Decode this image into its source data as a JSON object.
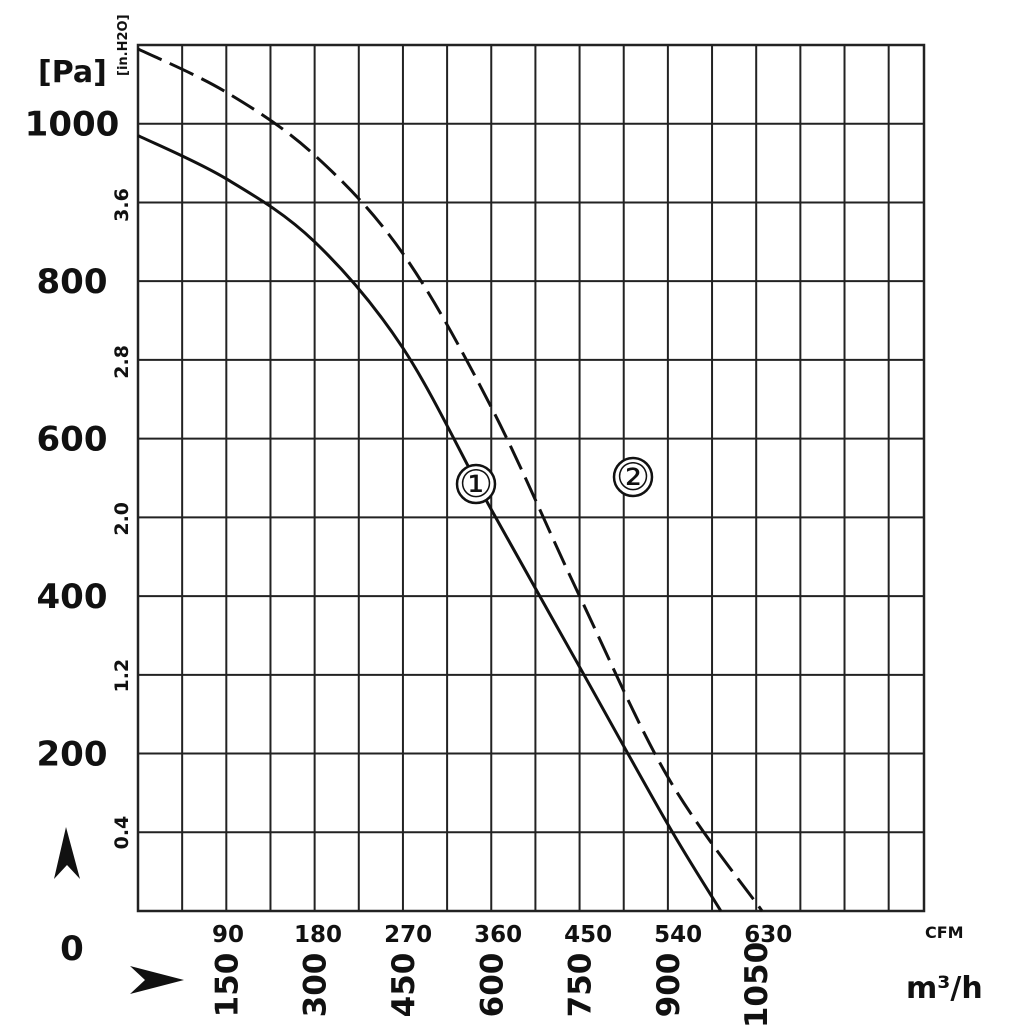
{
  "chart_data": {
    "type": "line",
    "y_left_unit": "[Pa]",
    "y_left_ticks": [
      "0",
      "200",
      "400",
      "600",
      "800",
      "1000"
    ],
    "y_left_range": [
      0,
      1100
    ],
    "y_inner_unit": "[in.H2O]",
    "y_inner_ticks": [
      "0.4",
      "1.2",
      "2.0",
      "2.8",
      "3.6"
    ],
    "x_cfm_unit": "CFM",
    "x_cfm_ticks": [
      "90",
      "180",
      "270",
      "360",
      "450",
      "540",
      "630"
    ],
    "x_m3h_unit": "m³/h",
    "x_m3h_ticks": [
      "150",
      "300",
      "450",
      "600",
      "750",
      "900",
      "1050"
    ],
    "x_m3h_range": [
      0,
      1335
    ],
    "grid": true,
    "series": [
      {
        "name": "①",
        "style": "solid",
        "x_m3h": [
          0,
          150,
          300,
          450,
          600,
          750,
          900,
          990
        ],
        "y_pa": [
          985,
          930,
          850,
          715,
          510,
          310,
          110,
          0
        ]
      },
      {
        "name": "②",
        "style": "dashed",
        "x_m3h": [
          0,
          150,
          300,
          450,
          600,
          750,
          900,
          1060
        ],
        "y_pa": [
          1095,
          1040,
          960,
          835,
          640,
          400,
          170,
          0
        ]
      }
    ]
  }
}
